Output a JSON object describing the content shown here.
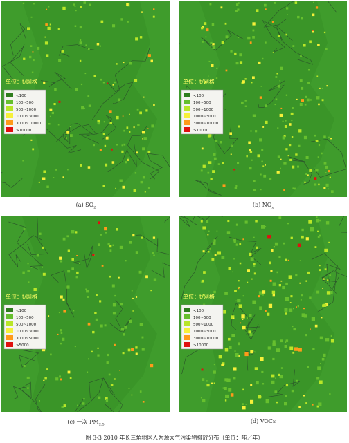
{
  "panels": [
    {
      "id": "a",
      "unit": "单位：t/网格",
      "legend": [
        "<100",
        "100~500",
        "500~1000",
        "1000~3000",
        "3000~10000",
        ">10000"
      ],
      "caption": {
        "prefix": "(a) SO",
        "sub": "2"
      }
    },
    {
      "id": "b",
      "unit": "单位：t/网格",
      "legend": [
        "<100",
        "100~500",
        "500~1000",
        "1000~3000",
        "3000~10000",
        ">10000"
      ],
      "caption": {
        "prefix": "(b) NO",
        "sub": "x"
      }
    },
    {
      "id": "c",
      "unit": "单位：t/网格",
      "legend": [
        "<100",
        "100~500",
        "500~1000",
        "1000~3000",
        "3000~5000",
        ">5000"
      ],
      "caption": {
        "prefix": "(c) 一次 PM",
        "sub": "2.5"
      }
    },
    {
      "id": "d",
      "unit": "单位：t/网格",
      "legend": [
        "<100",
        "100~500",
        "500~1000",
        "1000~3000",
        "3000~10000",
        ">10000"
      ],
      "caption": {
        "prefix": "(d) VOCs",
        "sub": ""
      }
    }
  ],
  "figure_caption": "图 3-3 2010 年长三角地区人为源大气污染物排放分布（单位：吨／年）"
}
